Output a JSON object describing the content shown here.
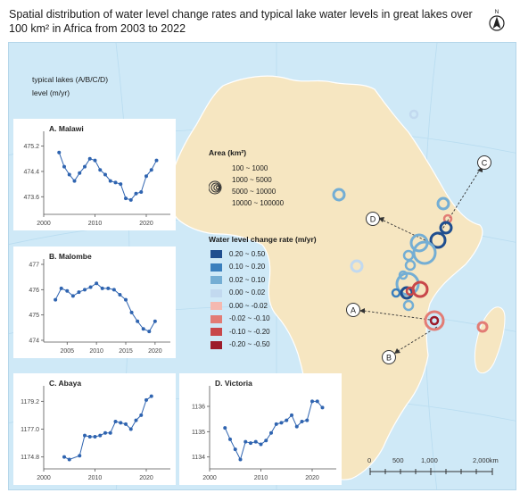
{
  "title": "Spatial distribution of water level change rates and typical lake water levels in great lakes over 100 km² in Africa from 2003 to 2022",
  "north_label": "N",
  "inset_header": {
    "line1": "typical lakes (A/B/C/D)",
    "line2": "level (m/yr)"
  },
  "colors": {
    "ocean": "#cfe9f7",
    "land": "#f6e6c1",
    "line": "#2f64b0"
  },
  "charts": [
    {
      "id": "A",
      "label": "A. Malawi",
      "yticks": [
        "475.2",
        "474.4",
        "473.6"
      ],
      "ytick_values": [
        475.2,
        474.4,
        473.6
      ],
      "ylim": [
        473.1,
        475.5
      ],
      "xticks": [
        "2000",
        "2010",
        "2020"
      ],
      "xtick_values": [
        2000,
        2010,
        2020
      ],
      "xlim": [
        2000,
        2024
      ],
      "x": [
        2003,
        2004,
        2005,
        2006,
        2007,
        2008,
        2009,
        2010,
        2011,
        2012,
        2013,
        2014,
        2015,
        2016,
        2017,
        2018,
        2019,
        2020,
        2021,
        2022
      ],
      "values": [
        475.0,
        474.55,
        474.3,
        474.1,
        474.35,
        474.55,
        474.8,
        474.75,
        474.45,
        474.3,
        474.1,
        474.05,
        474.0,
        473.55,
        473.5,
        473.7,
        473.75,
        474.25,
        474.45,
        474.75
      ]
    },
    {
      "id": "B",
      "label": "B. Malombe",
      "yticks": [
        "477",
        "476",
        "475",
        "474"
      ],
      "ytick_values": [
        477,
        476,
        475,
        474
      ],
      "ylim": [
        474,
        477
      ],
      "xticks": [
        "2005",
        "2010",
        "2015",
        "2020"
      ],
      "xtick_values": [
        2005,
        2010,
        2015,
        2020
      ],
      "xlim": [
        2001,
        2022
      ],
      "x": [
        2003,
        2004,
        2005,
        2006,
        2007,
        2008,
        2009,
        2010,
        2011,
        2012,
        2013,
        2014,
        2015,
        2016,
        2017,
        2018,
        2019,
        2020
      ],
      "values": [
        475.6,
        476.05,
        475.95,
        475.75,
        475.9,
        476.0,
        476.1,
        476.25,
        476.05,
        476.05,
        476.0,
        475.8,
        475.6,
        475.1,
        474.75,
        474.45,
        474.35,
        474.75
      ]
    },
    {
      "id": "C",
      "label": "C. Abaya",
      "yticks": [
        "1179.2",
        "1177.0",
        "1174.8"
      ],
      "ytick_values": [
        1179.2,
        1177.0,
        1174.8
      ],
      "ylim": [
        1174.0,
        1180.0
      ],
      "xticks": [
        "2000",
        "2010",
        "2020"
      ],
      "xtick_values": [
        2000,
        2010,
        2020
      ],
      "xlim": [
        2000,
        2024
      ],
      "x": [
        2004,
        2005,
        2007,
        2008,
        2009,
        2010,
        2011,
        2012,
        2013,
        2014,
        2015,
        2016,
        2017,
        2018,
        2019,
        2020,
        2021
      ],
      "values": [
        1174.8,
        1174.6,
        1174.9,
        1176.5,
        1176.4,
        1176.4,
        1176.5,
        1176.7,
        1176.7,
        1177.6,
        1177.5,
        1177.4,
        1177.0,
        1177.7,
        1178.1,
        1179.3,
        1179.6
      ]
    },
    {
      "id": "D",
      "label": "D. Victoria",
      "yticks": [
        "1136",
        "1135",
        "1134"
      ],
      "ytick_values": [
        1136,
        1135,
        1134
      ],
      "ylim": [
        1133.6,
        1136.6
      ],
      "xticks": [
        "2000",
        "2010",
        "2020"
      ],
      "xtick_values": [
        2000,
        2010,
        2020
      ],
      "xlim": [
        2000,
        2024
      ],
      "x": [
        2003,
        2004,
        2005,
        2006,
        2007,
        2008,
        2009,
        2010,
        2011,
        2012,
        2013,
        2014,
        2015,
        2016,
        2017,
        2018,
        2019,
        2020,
        2021,
        2022
      ],
      "values": [
        1135.15,
        1134.7,
        1134.3,
        1133.9,
        1134.6,
        1134.55,
        1134.6,
        1134.5,
        1134.65,
        1134.95,
        1135.3,
        1135.35,
        1135.45,
        1135.65,
        1135.2,
        1135.4,
        1135.45,
        1136.2,
        1136.2,
        1135.95
      ]
    }
  ],
  "area_legend": {
    "title": "Area (km²)",
    "items": [
      "100 ~ 1000",
      "1000 ~ 5000",
      "5000 ~ 10000",
      "10000 ~ 100000"
    ]
  },
  "rate_legend": {
    "title": "Water level change rate (m/yr)",
    "items": [
      {
        "label": "0.20 ~ 0.50",
        "color": "#1f4e8f"
      },
      {
        "label": "0.10 ~ 0.20",
        "color": "#3a7fbd"
      },
      {
        "label": "0.02 ~ 0.10",
        "color": "#74aed4"
      },
      {
        "label": "0.00 ~ 0.02",
        "color": "#c2d9ef"
      },
      {
        "label": "0.00 ~ -0.02",
        "color": "#f5b9b0"
      },
      {
        "label": "-0.02 ~ -0.10",
        "color": "#e27c75"
      },
      {
        "label": "-0.10 ~ -0.20",
        "color": "#c8474a"
      },
      {
        "label": "-0.20 ~ -0.50",
        "color": "#9c1c2b"
      }
    ]
  },
  "callouts": [
    "A",
    "B",
    "C",
    "D"
  ],
  "scalebar": {
    "labels": [
      "0",
      "500",
      "1,000",
      "2,000km"
    ]
  }
}
